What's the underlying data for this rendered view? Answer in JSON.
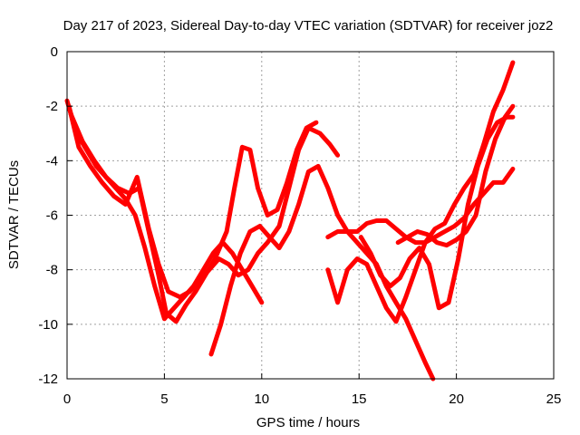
{
  "chart_data": {
    "type": "scatter",
    "title": "Day 217 of 2023, Sidereal Day-to-day VTEC variation (SDTVAR) for receiver joz2",
    "xlabel": "GPS time / hours",
    "ylabel": "SDTVAR / TECUs",
    "xlim": [
      0,
      25
    ],
    "ylim": [
      -12,
      0
    ],
    "xticks": [
      "0",
      "5",
      "10",
      "15",
      "20",
      "25"
    ],
    "yticks": [
      "0",
      "-2",
      "-4",
      "-6",
      "-8",
      "-10",
      "-12"
    ],
    "grid": true,
    "marker_color": "#ff0000",
    "marker": "plus",
    "series": [
      {
        "x": [
          0.0,
          0.5,
          1.0,
          1.5,
          2.0,
          2.5,
          3.0,
          3.5,
          4.0,
          4.5,
          5.0,
          5.5,
          6.0,
          6.5,
          7.0,
          7.5,
          8.0,
          8.5,
          9.0,
          9.5,
          10.0
        ],
        "y": [
          -1.8,
          -3.0,
          -3.6,
          -4.2,
          -4.6,
          -5.0,
          -5.4,
          -6.0,
          -7.2,
          -8.6,
          -9.8,
          -9.4,
          -9.0,
          -8.6,
          -8.0,
          -7.4,
          -7.0,
          -7.4,
          -8.0,
          -8.6,
          -9.2
        ]
      },
      {
        "x": [
          0.2,
          0.8,
          1.4,
          2.0,
          2.6,
          3.2,
          3.7,
          4.2,
          4.7,
          5.1,
          5.6,
          6.1,
          6.6,
          7.1,
          7.6,
          8.2,
          8.6,
          9.0,
          9.4,
          9.8,
          10.3,
          10.8,
          11.3,
          11.8,
          12.3,
          12.8
        ],
        "y": [
          -2.3,
          -3.3,
          -4.0,
          -4.6,
          -5.0,
          -5.2,
          -5.0,
          -6.6,
          -8.2,
          -9.6,
          -9.9,
          -9.3,
          -8.8,
          -8.2,
          -7.6,
          -6.6,
          -5.0,
          -3.5,
          -3.6,
          -5.0,
          -6.0,
          -5.8,
          -4.8,
          -3.6,
          -2.8,
          -2.6
        ]
      },
      {
        "x": [
          0.1,
          0.6,
          1.2,
          1.8,
          2.4,
          3.0,
          3.6,
          4.2,
          4.7,
          5.2,
          5.8,
          6.3,
          6.8,
          7.3,
          7.8,
          8.3,
          8.8,
          9.3,
          9.8,
          10.3,
          10.9,
          11.4,
          11.9,
          12.4,
          13.0,
          13.5,
          13.9
        ],
        "y": [
          -2.0,
          -3.5,
          -4.2,
          -4.8,
          -5.3,
          -5.6,
          -4.6,
          -6.5,
          -7.8,
          -8.8,
          -9.0,
          -8.8,
          -8.4,
          -8.0,
          -7.6,
          -7.8,
          -8.2,
          -8.0,
          -7.4,
          -7.0,
          -6.4,
          -5.0,
          -3.6,
          -2.8,
          -3.0,
          -3.4,
          -3.8
        ]
      },
      {
        "x": [
          7.4,
          7.9,
          8.4,
          8.9,
          9.4,
          9.9,
          10.4,
          10.9,
          11.4,
          11.9,
          12.4,
          12.9,
          13.4,
          13.9,
          14.4,
          14.9,
          15.4,
          15.9,
          16.4,
          16.9,
          17.4,
          17.9,
          18.4,
          18.8
        ],
        "y": [
          -11.1,
          -10.0,
          -8.6,
          -7.4,
          -6.6,
          -6.4,
          -6.8,
          -7.2,
          -6.6,
          -5.6,
          -4.4,
          -4.2,
          -5.0,
          -6.0,
          -6.6,
          -7.0,
          -7.4,
          -7.8,
          -8.6,
          -9.2,
          -9.8,
          -10.6,
          -11.4,
          -12.0
        ]
      },
      {
        "x": [
          13.4,
          13.9,
          14.4,
          14.9,
          15.4,
          15.9,
          16.4,
          16.9,
          17.4,
          17.9,
          18.4,
          18.9,
          19.4,
          19.9,
          20.4,
          20.9,
          21.4,
          21.9,
          22.4,
          22.9
        ],
        "y": [
          -6.8,
          -6.6,
          -6.6,
          -6.6,
          -6.3,
          -6.2,
          -6.2,
          -6.5,
          -6.8,
          -7.0,
          -7.0,
          -6.8,
          -6.6,
          -6.4,
          -6.1,
          -5.6,
          -5.2,
          -4.8,
          -4.8,
          -4.3
        ]
      },
      {
        "x": [
          13.4,
          13.9,
          14.4,
          14.9,
          15.4,
          15.9,
          16.4,
          16.9,
          17.4,
          17.9,
          18.4,
          18.9,
          19.4,
          19.9,
          20.4,
          20.9,
          21.4,
          21.9,
          22.4,
          22.9
        ],
        "y": [
          -8.0,
          -9.2,
          -8.0,
          -7.6,
          -7.8,
          -8.6,
          -9.4,
          -9.9,
          -9.0,
          -8.0,
          -7.0,
          -6.5,
          -6.3,
          -5.6,
          -5.0,
          -4.5,
          -3.4,
          -2.2,
          -1.4,
          -0.4
        ]
      },
      {
        "x": [
          15.1,
          15.6,
          16.1,
          16.6,
          17.1,
          17.6,
          18.1,
          18.6,
          19.1,
          19.6,
          20.1,
          20.6,
          21.1,
          21.6,
          22.1,
          22.6,
          22.9
        ],
        "y": [
          -6.8,
          -7.4,
          -8.2,
          -8.6,
          -8.3,
          -7.6,
          -7.2,
          -7.8,
          -9.4,
          -9.2,
          -7.6,
          -5.6,
          -4.2,
          -3.2,
          -2.6,
          -2.4,
          -2.4
        ]
      },
      {
        "x": [
          17.0,
          17.5,
          18.0,
          18.5,
          19.0,
          19.5,
          20.0,
          20.5,
          21.0,
          21.5,
          22.0,
          22.5,
          22.9
        ],
        "y": [
          -7.0,
          -6.8,
          -6.6,
          -6.7,
          -7.0,
          -7.1,
          -6.9,
          -6.6,
          -6.0,
          -4.4,
          -3.2,
          -2.4,
          -2.0
        ]
      }
    ]
  }
}
